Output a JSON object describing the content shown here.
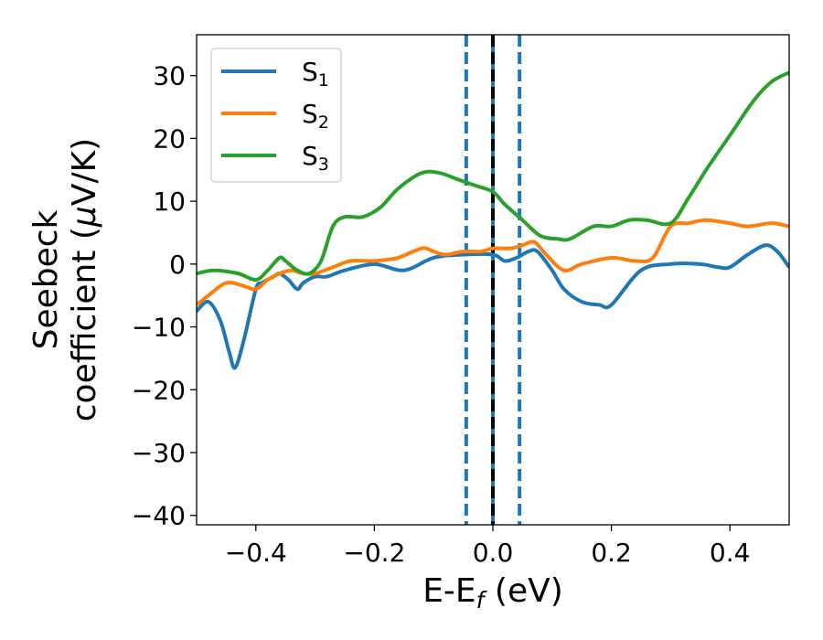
{
  "chart_data": {
    "type": "line",
    "xlabel": "E-E",
    "xlabel_subscript": "f",
    "xlabel_unit": " (eV)",
    "ylabel_line1": "Seebeck",
    "ylabel_line2": "coefficient  (",
    "ylabel_mu": "μ",
    "ylabel_unit": "V/K)",
    "xlim": [
      -0.5,
      0.5
    ],
    "ylim": [
      -41.5,
      36.5
    ],
    "xticks": [
      -0.4,
      -0.2,
      0.0,
      0.2,
      0.4
    ],
    "xtick_labels": [
      "−0.4",
      "−0.2",
      "0.0",
      "0.2",
      "0.4"
    ],
    "yticks": [
      -40,
      -30,
      -20,
      -10,
      0,
      10,
      20,
      30
    ],
    "ytick_labels": [
      "−40",
      "−30",
      "−20",
      "−10",
      "0",
      "10",
      "20",
      "30"
    ],
    "grid": false,
    "legend_position": "top-left",
    "vertical_lines": [
      {
        "x": -0.045,
        "style": "dashed",
        "color": "#1f77b4"
      },
      {
        "x": 0.0,
        "style": "solid",
        "color": "#1f77b4"
      },
      {
        "x": 0.0,
        "style": "dashed",
        "color": "#000000"
      },
      {
        "x": 0.045,
        "style": "dashed",
        "color": "#1f77b4"
      }
    ],
    "series": [
      {
        "name": "S",
        "subscript": "1",
        "color": "#1f77b4",
        "x": [
          -0.5,
          -0.48,
          -0.46,
          -0.445,
          -0.435,
          -0.42,
          -0.4,
          -0.39,
          -0.37,
          -0.36,
          -0.345,
          -0.33,
          -0.32,
          -0.3,
          -0.28,
          -0.25,
          -0.2,
          -0.15,
          -0.1,
          -0.05,
          0.0,
          0.02,
          0.04,
          0.06,
          0.075,
          0.1,
          0.12,
          0.15,
          0.18,
          0.2,
          0.25,
          0.3,
          0.35,
          0.38,
          0.4,
          0.43,
          0.46,
          0.48,
          0.5
        ],
        "y": [
          -7.5,
          -6,
          -9,
          -14,
          -16.5,
          -12,
          -4,
          -3,
          -2,
          -1.5,
          -2.5,
          -4,
          -3,
          -2,
          -2,
          -1,
          0,
          -1,
          1,
          1.5,
          1.5,
          0.5,
          1,
          2,
          2,
          -1,
          -4,
          -6,
          -6.5,
          -6.5,
          -1,
          0,
          0,
          -0.5,
          -0.5,
          1.5,
          3,
          2,
          -0.5
        ]
      },
      {
        "name": "S",
        "subscript": "2",
        "color": "#ff7f0e",
        "x": [
          -0.5,
          -0.48,
          -0.45,
          -0.42,
          -0.4,
          -0.38,
          -0.36,
          -0.34,
          -0.32,
          -0.3,
          -0.27,
          -0.24,
          -0.2,
          -0.16,
          -0.12,
          -0.1,
          -0.08,
          -0.05,
          -0.02,
          0.0,
          0.03,
          0.05,
          0.07,
          0.09,
          0.12,
          0.15,
          0.2,
          0.24,
          0.27,
          0.3,
          0.33,
          0.36,
          0.4,
          0.43,
          0.47,
          0.5
        ],
        "y": [
          -6.5,
          -5,
          -3,
          -3.5,
          -4,
          -2.5,
          -1.5,
          -1,
          -1.5,
          -1.5,
          -0.5,
          0.5,
          0.5,
          1,
          2.5,
          2,
          1.5,
          2,
          2,
          2.5,
          2.5,
          3,
          3.5,
          1.5,
          -1,
          0,
          1,
          0.5,
          1,
          6,
          6.5,
          7,
          6.5,
          6,
          6.5,
          6
        ]
      },
      {
        "name": "S",
        "subscript": "3",
        "color": "#2ca02c",
        "x": [
          -0.5,
          -0.47,
          -0.43,
          -0.4,
          -0.38,
          -0.36,
          -0.35,
          -0.33,
          -0.31,
          -0.29,
          -0.27,
          -0.25,
          -0.22,
          -0.19,
          -0.16,
          -0.12,
          -0.09,
          -0.06,
          -0.03,
          0.0,
          0.02,
          0.05,
          0.08,
          0.11,
          0.13,
          0.17,
          0.2,
          0.23,
          0.26,
          0.3,
          0.33,
          0.36,
          0.4,
          0.44,
          0.47,
          0.5
        ],
        "y": [
          -1.5,
          -1,
          -1.5,
          -2.5,
          -1,
          1,
          0.5,
          -1,
          -1.5,
          0.5,
          6,
          7.5,
          7.5,
          9,
          12,
          14.5,
          14.5,
          13.5,
          12.5,
          11.5,
          9.5,
          7,
          4.5,
          4,
          4,
          6,
          6,
          7,
          7,
          6.5,
          10.5,
          15,
          20.5,
          26,
          29,
          30.5
        ]
      }
    ]
  }
}
